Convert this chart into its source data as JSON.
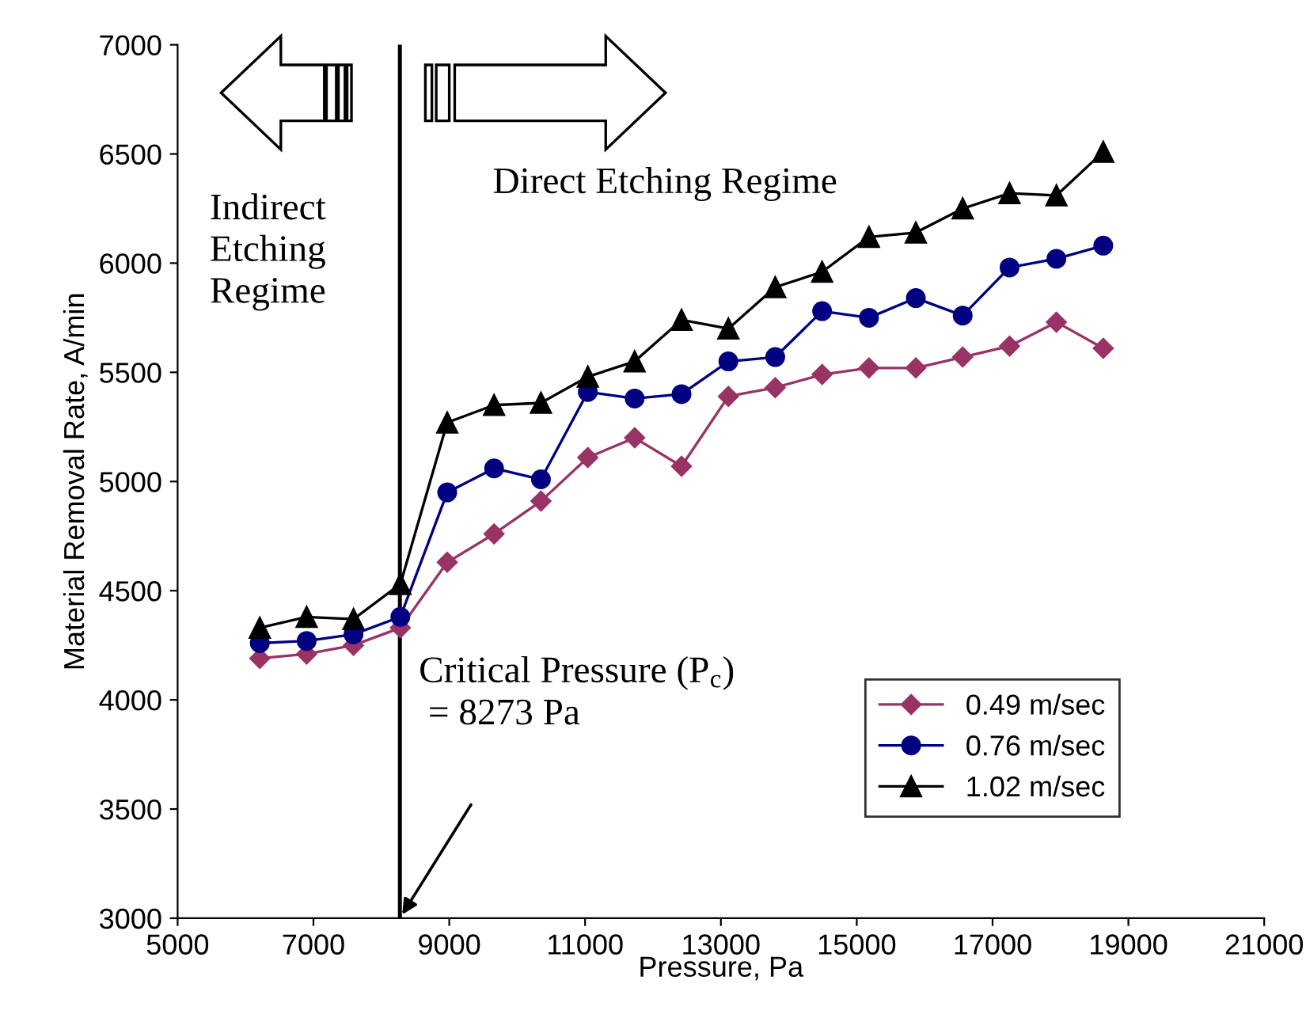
{
  "chart_data": {
    "type": "line",
    "xlabel": "Pressure, Pa",
    "ylabel": "Material Removal Rate, A/min",
    "x": [
      6210,
      6900,
      7590,
      8280,
      8970,
      9660,
      10350,
      11040,
      11730,
      12420,
      13110,
      13800,
      14490,
      15180,
      15870,
      16560,
      17250,
      17940,
      18630
    ],
    "series": [
      {
        "name": "0.49 m/sec",
        "color": "#993366",
        "marker": "diamond",
        "values": [
          4190,
          4210,
          4250,
          4330,
          4630,
          4760,
          4910,
          5110,
          5200,
          5070,
          5390,
          5430,
          5490,
          5520,
          5520,
          5570,
          5620,
          5730,
          5610
        ]
      },
      {
        "name": "0.76 m/sec",
        "color": "#000080",
        "marker": "circle",
        "values": [
          4260,
          4270,
          4300,
          4380,
          4950,
          5060,
          5010,
          5410,
          5380,
          5400,
          5550,
          5570,
          5780,
          5750,
          5840,
          5760,
          5980,
          6020,
          6080
        ]
      },
      {
        "name": "1.02 m/sec",
        "color": "#000000",
        "marker": "triangle",
        "values": [
          4330,
          4380,
          4370,
          4530,
          5270,
          5350,
          5360,
          5480,
          5550,
          5740,
          5700,
          5890,
          5960,
          6120,
          6140,
          6250,
          6320,
          6310,
          6510
        ]
      }
    ],
    "xlim": [
      5000,
      21000
    ],
    "xticks": [
      5000,
      7000,
      9000,
      11000,
      13000,
      15000,
      17000,
      19000,
      21000
    ],
    "ylim": [
      3000,
      7000
    ],
    "yticks": [
      3000,
      3500,
      4000,
      4500,
      5000,
      5500,
      6000,
      6500,
      7000
    ],
    "ref_lines": [
      {
        "axis": "x",
        "value": 8273,
        "color": "#000000",
        "label": "Critical Pressure (P$_{c}$)\n = 8273 Pa"
      }
    ],
    "annotations": [
      "Indirect\nEtching\nRegime",
      "Direct Etching Regime"
    ],
    "grid": false,
    "legend": "bottom right"
  }
}
